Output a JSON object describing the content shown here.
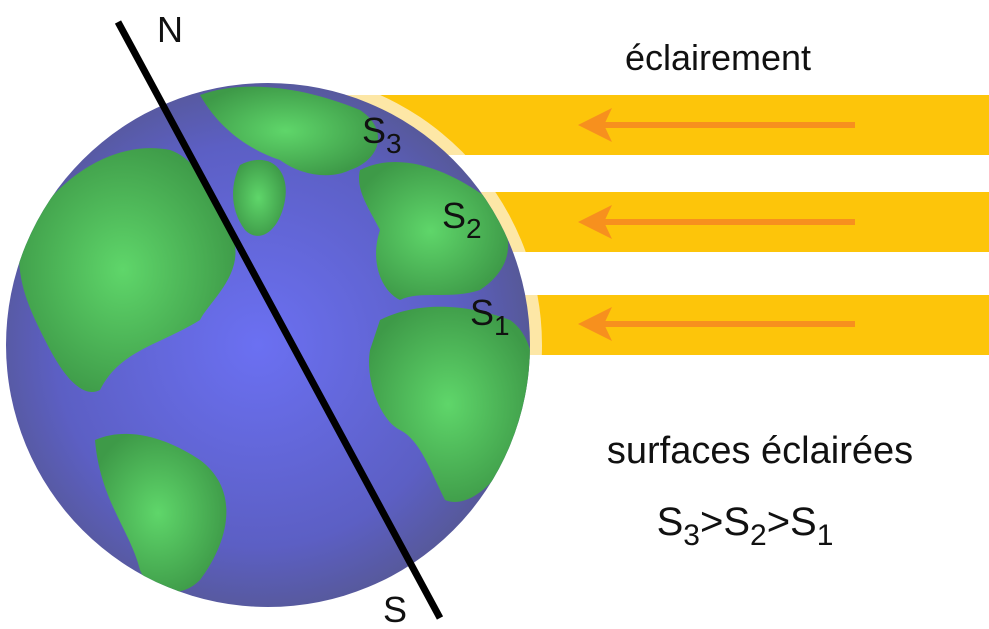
{
  "labels": {
    "north": "N",
    "south": "S"
  },
  "title": "éclairement",
  "surfaces": [
    {
      "letter": "S",
      "index": "3"
    },
    {
      "letter": "S",
      "index": "2"
    },
    {
      "letter": "S",
      "index": "1"
    }
  ],
  "caption": "surfaces éclairées",
  "inequality": {
    "terms": [
      {
        "letter": "S",
        "index": "3"
      },
      {
        "letter": "S",
        "index": "2"
      },
      {
        "letter": "S",
        "index": "1"
      }
    ],
    "operator": ">"
  }
}
